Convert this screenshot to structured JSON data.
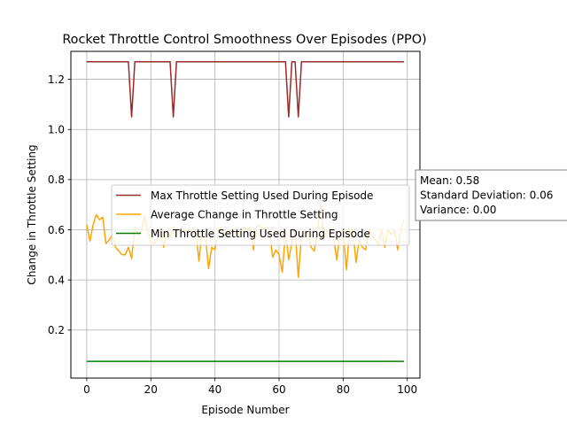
{
  "chart_data": {
    "type": "line",
    "title": "Rocket Throttle Control Smoothness Over Episodes (PPO)",
    "xlabel": "Episode Number",
    "ylabel": "Change in Throttle Setting",
    "xlim": [
      -4.95,
      103.95
    ],
    "ylim": [
      0.0085,
      1.3115
    ],
    "xticks": [
      0,
      20,
      40,
      60,
      80,
      100
    ],
    "yticks": [
      0.2,
      0.4,
      0.6,
      0.8,
      1.0,
      1.2
    ],
    "xtick_labels": [
      "0",
      "20",
      "40",
      "60",
      "80",
      "100"
    ],
    "ytick_labels": [
      "0.2",
      "0.4",
      "0.6",
      "0.8",
      "1.0",
      "1.2"
    ],
    "grid": true,
    "legend_position": "center-right",
    "series": [
      {
        "name": "Max Throttle Setting Used During Episode",
        "color": "#9b2a2a",
        "x": [
          0,
          13,
          14,
          15,
          26,
          27,
          28,
          62,
          63,
          64,
          65,
          66,
          67,
          99
        ],
        "y": [
          1.27,
          1.27,
          1.05,
          1.27,
          1.27,
          1.05,
          1.27,
          1.27,
          1.05,
          1.27,
          1.27,
          1.05,
          1.27,
          1.27
        ]
      },
      {
        "name": "Average Change in Throttle Setting",
        "color": "#ffa500",
        "x": [
          0,
          1,
          2,
          3,
          4,
          5,
          6,
          7,
          8,
          9,
          10,
          11,
          12,
          13,
          14,
          15,
          16,
          17,
          18,
          19,
          20,
          21,
          22,
          23,
          24,
          25,
          26,
          27,
          28,
          29,
          30,
          31,
          32,
          33,
          34,
          35,
          36,
          37,
          38,
          39,
          40,
          41,
          42,
          43,
          44,
          45,
          46,
          47,
          48,
          49,
          50,
          51,
          52,
          53,
          54,
          55,
          56,
          57,
          58,
          59,
          60,
          61,
          62,
          63,
          64,
          65,
          66,
          67,
          68,
          69,
          70,
          71,
          72,
          73,
          74,
          75,
          76,
          77,
          78,
          79,
          80,
          81,
          82,
          83,
          84,
          85,
          86,
          87,
          88,
          89,
          90,
          91,
          92,
          93,
          94,
          95,
          96,
          97,
          98,
          99
        ],
        "y": [
          0.62,
          0.555,
          0.62,
          0.66,
          0.64,
          0.65,
          0.545,
          0.56,
          0.58,
          0.53,
          0.515,
          0.5,
          0.5,
          0.53,
          0.485,
          0.61,
          0.58,
          0.59,
          0.66,
          0.6,
          0.55,
          0.545,
          0.56,
          0.6,
          0.53,
          0.6,
          0.57,
          0.61,
          0.595,
          0.6,
          0.6,
          0.595,
          0.6,
          0.58,
          0.605,
          0.475,
          0.6,
          0.58,
          0.445,
          0.53,
          0.52,
          0.6,
          0.61,
          0.57,
          0.59,
          0.6,
          0.6,
          0.58,
          0.59,
          0.61,
          0.6,
          0.61,
          0.52,
          0.61,
          0.62,
          0.6,
          0.61,
          0.6,
          0.49,
          0.52,
          0.5,
          0.43,
          0.59,
          0.48,
          0.55,
          0.6,
          0.41,
          0.58,
          0.6,
          0.58,
          0.53,
          0.515,
          0.6,
          0.7,
          0.56,
          0.6,
          0.58,
          0.57,
          0.48,
          0.58,
          0.6,
          0.44,
          0.6,
          0.6,
          0.47,
          0.56,
          0.53,
          0.52,
          0.6,
          0.58,
          0.56,
          0.54,
          0.6,
          0.53,
          0.6,
          0.58,
          0.6,
          0.52,
          0.6,
          0.64
        ]
      },
      {
        "name": "Min Throttle Setting Used During Episode",
        "color": "#008000",
        "x": [
          0,
          99
        ],
        "y": [
          0.075,
          0.075
        ]
      }
    ],
    "annotations": [
      "Mean: 0.58",
      "Standard Deviation: 0.06",
      "Variance: 0.00"
    ]
  }
}
